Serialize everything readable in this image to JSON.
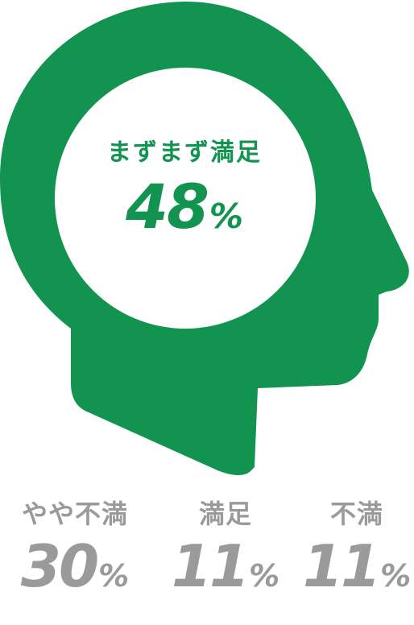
{
  "colors": {
    "head": "#129450",
    "primary_text": "#129450",
    "secondary_text": "#9a9a9a"
  },
  "main": {
    "label": "まずまず満足",
    "value": "48",
    "unit": "%"
  },
  "stats": [
    {
      "label": "やや不満",
      "value": "30",
      "unit": "%"
    },
    {
      "label": "満足",
      "value": "11",
      "unit": "%"
    },
    {
      "label": "不満",
      "value": "11",
      "unit": "%"
    }
  ]
}
